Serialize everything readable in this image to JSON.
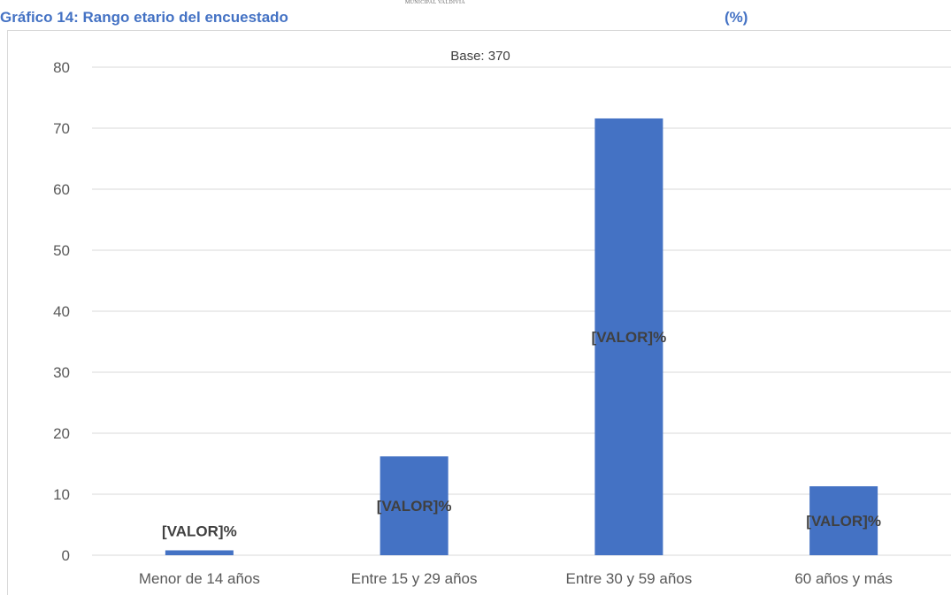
{
  "header": {
    "title": "Gráfico 14: Rango etario del encuestado",
    "unit": "(%)",
    "logo_text": "MUNICIPAL VALDIVIA"
  },
  "colors": {
    "accent": "#4472C4",
    "bar": "#4472C4",
    "grid": "#d9d9d9",
    "label": "#404040"
  },
  "chart_data": {
    "type": "bar",
    "title": "",
    "note": "Base: 370",
    "categories": [
      "Menor de 14 años",
      "Entre 15 y 29 años",
      "Entre 30 y 59 años",
      "60 años y más"
    ],
    "values": [
      0.8,
      16.2,
      71.6,
      11.3
    ],
    "data_labels": [
      "[VALOR]%",
      "[VALOR]%",
      "[VALOR]%",
      "[VALOR]%"
    ],
    "xlabel": "",
    "ylabel": "",
    "ylim": [
      0,
      80
    ],
    "yticks": [
      0,
      10,
      20,
      30,
      40,
      50,
      60,
      70,
      80
    ],
    "grid": true,
    "legend": "none"
  }
}
